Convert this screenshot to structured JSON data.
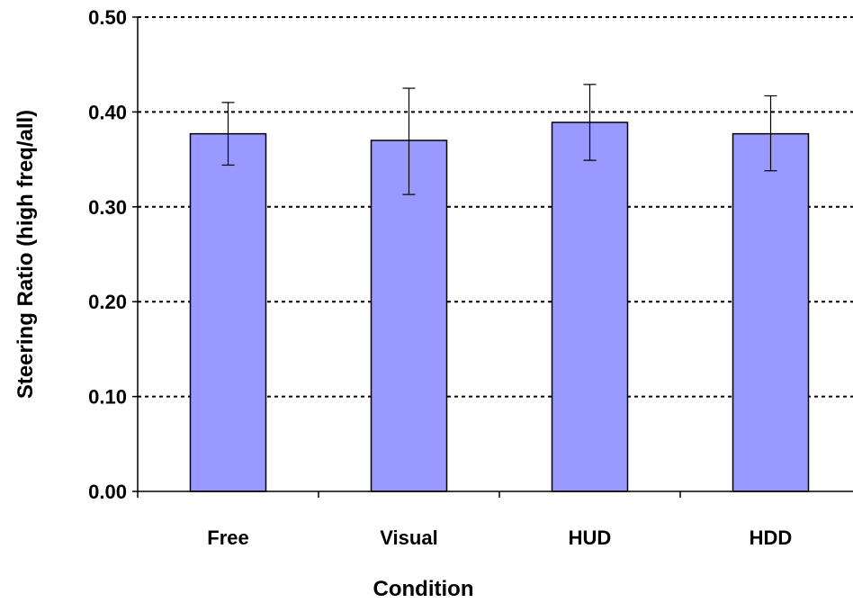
{
  "chart_data": {
    "type": "bar",
    "title": "",
    "xlabel": "Condition",
    "ylabel": "Steering Ratio (high freq/all)",
    "categories": [
      "Free",
      "Visual",
      "HUD",
      "HDD"
    ],
    "values": [
      0.377,
      0.37,
      0.389,
      0.377
    ],
    "error_low": [
      0.344,
      0.313,
      0.349,
      0.338
    ],
    "error_high": [
      0.41,
      0.425,
      0.429,
      0.417
    ],
    "ylim": [
      0,
      0.5
    ],
    "yticks": [
      "0.00",
      "0.10",
      "0.20",
      "0.30",
      "0.40",
      "0.50"
    ],
    "ytick_values": [
      0,
      0.1,
      0.2,
      0.3,
      0.4,
      0.5
    ],
    "grid": true,
    "legend": "none",
    "bar_color": "#9999ff",
    "bar_edge_color": "#000000"
  }
}
